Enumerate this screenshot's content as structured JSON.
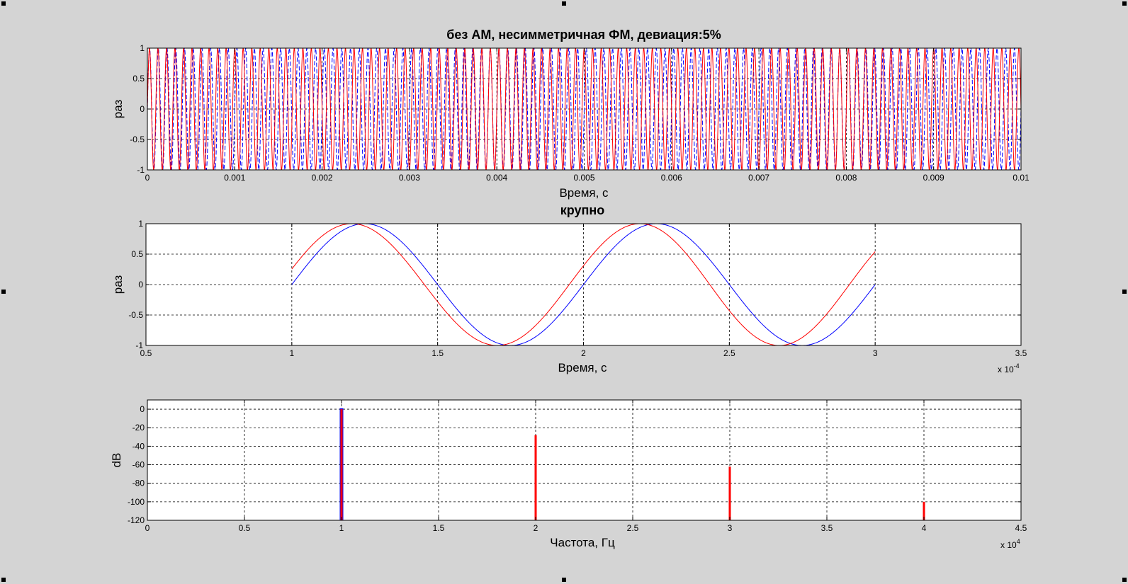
{
  "colors": {
    "background": "#d4d4d4",
    "axes_bg": "#ffffff",
    "series_blue": "#0000ff",
    "series_red": "#ff0000",
    "grid": "#000000"
  },
  "chart_data": [
    {
      "type": "line",
      "title": "без АМ, несимметричная ФМ, девиация:5%",
      "xlabel": "Время, с",
      "ylabel": "раз",
      "xlim": [
        0,
        0.01
      ],
      "ylim": [
        -1,
        1
      ],
      "grid": true,
      "xticks": [
        0,
        0.001,
        0.002,
        0.003,
        0.004,
        0.005,
        0.006,
        0.007,
        0.008,
        0.009,
        0.01
      ],
      "xtick_labels": [
        "0",
        "0.001",
        "0.002",
        "0.003",
        "0.004",
        "0.005",
        "0.006",
        "0.007",
        "0.008",
        "0.009",
        "0.01"
      ],
      "yticks": [
        -1,
        -0.5,
        0,
        0.5,
        1
      ],
      "ytick_labels": [
        "-1",
        "-0.5",
        "0",
        "0.5",
        "1"
      ],
      "series": [
        {
          "color": "#0000ff",
          "style": "dashed",
          "frequency_hz": 10000,
          "amplitude": 1,
          "fm_deviation": 0
        },
        {
          "color": "#ff0000",
          "style": "solid",
          "frequency_hz": 10000,
          "amplitude": 1,
          "fm_deviation": 0.05
        }
      ]
    },
    {
      "type": "line",
      "title": "крупно",
      "xlabel": "Время, с",
      "ylabel": "раз",
      "xlim": [
        5e-05,
        0.00035
      ],
      "ylim": [
        -1,
        1
      ],
      "x_multiplier": "x 10-4",
      "grid": true,
      "xticks": [
        5e-05,
        0.0001,
        0.00015,
        0.0002,
        0.00025,
        0.0003,
        0.00035
      ],
      "xtick_labels": [
        "0.5",
        "1",
        "1.5",
        "2",
        "2.5",
        "3",
        "3.5"
      ],
      "yticks": [
        -1,
        -0.5,
        0,
        0.5,
        1
      ],
      "ytick_labels": [
        "-1",
        "-0.5",
        "0",
        "0.5",
        "1"
      ],
      "series": [
        {
          "color": "#0000ff",
          "x_range": [
            0.0001,
            0.0003
          ],
          "frequency_hz": 10000,
          "amplitude": 1,
          "fm_deviation": 0
        },
        {
          "color": "#ff0000",
          "x_range": [
            0.0001,
            0.0003
          ],
          "frequency_hz": 10000,
          "amplitude": 1,
          "fm_deviation": 0.05
        }
      ]
    },
    {
      "type": "bar",
      "title": "",
      "xlabel": "Частота, Гц",
      "ylabel": "dB",
      "xlim": [
        0,
        45000
      ],
      "ylim": [
        -120,
        10
      ],
      "x_multiplier": "x 104",
      "grid": true,
      "xticks": [
        0,
        5000,
        10000,
        15000,
        20000,
        25000,
        30000,
        35000,
        40000,
        45000
      ],
      "xtick_labels": [
        "0",
        "0.5",
        "1",
        "1.5",
        "2",
        "2.5",
        "3",
        "3.5",
        "4",
        "4.5"
      ],
      "yticks": [
        0,
        -20,
        -40,
        -60,
        -80,
        -100,
        -120
      ],
      "ytick_labels": [
        "0",
        "-20",
        "-40",
        "-60",
        "-80",
        "-100",
        "-120"
      ],
      "series": [
        {
          "color": "#0000ff",
          "points": [
            {
              "x": 10000,
              "y": 1
            }
          ]
        },
        {
          "color": "#ff0000",
          "points": [
            {
              "x": 10000,
              "y": 0
            },
            {
              "x": 20000,
              "y": -28
            },
            {
              "x": 30000,
              "y": -62
            },
            {
              "x": 40000,
              "y": -100
            }
          ]
        }
      ]
    }
  ]
}
